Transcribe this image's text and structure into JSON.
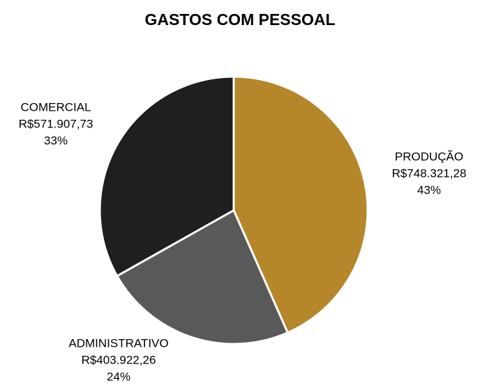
{
  "chart_data": {
    "type": "pie",
    "title": "GASTOS COM PESSOAL",
    "categories": [
      "PRODUÇÃO",
      "ADMINISTRATIVO",
      "COMERCIAL"
    ],
    "values": [
      748321.28,
      403922.26,
      571907.73
    ],
    "value_labels": [
      "R$748.321,28",
      "R$403.922,26",
      "R$571.907,73"
    ],
    "percent_labels": [
      "43%",
      "24%",
      "33%"
    ],
    "colors": [
      "#b5862a",
      "#595959",
      "#1f1f1f"
    ]
  }
}
